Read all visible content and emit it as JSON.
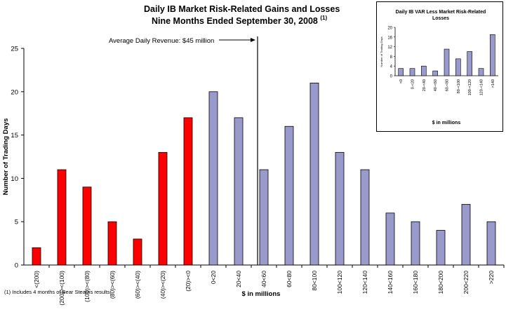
{
  "chart_data": [
    {
      "type": "bar",
      "title": "Daily IB Market Risk-Related Gains and Losses",
      "subtitle": "Nine Months Ended September 30, 2008",
      "subtitle_note": "(1)",
      "xlabel": "$ in millions",
      "ylabel": "Number of Trading Days",
      "ylim": [
        0,
        25
      ],
      "yticks": [
        "0",
        "5",
        "10",
        "15",
        "20",
        "25"
      ],
      "categories": [
        "<(200)",
        "(200)><(100)",
        "(100)><(80)",
        "(80)><(60)",
        "(60)><(40)",
        "(40)><(20)",
        "(20)><0",
        "0<20",
        "20<40",
        "40<60",
        "60<80",
        "80<100",
        "100<120",
        "120<140",
        "140<160",
        "160<180",
        "180<200",
        "200<220",
        ">220"
      ],
      "values": [
        2,
        11,
        9,
        5,
        3,
        13,
        17,
        20,
        17,
        11,
        16,
        21,
        13,
        11,
        6,
        5,
        4,
        7,
        5
      ],
      "colors": [
        "#ff0000",
        "#ff0000",
        "#ff0000",
        "#ff0000",
        "#ff0000",
        "#ff0000",
        "#ff0000",
        "#9999cc",
        "#9999cc",
        "#9999cc",
        "#9999cc",
        "#9999cc",
        "#9999cc",
        "#9999cc",
        "#9999cc",
        "#9999cc",
        "#9999cc",
        "#9999cc",
        "#9999cc"
      ],
      "annotation": "Average Daily Revenue: $45 million",
      "annotation_x": 45,
      "grid": false
    },
    {
      "type": "bar",
      "title": "Daily IB VAR Less Market Risk-Related Losses",
      "xlabel": "$ in millions",
      "ylabel": "Number of Trading Days",
      "ylim": [
        0,
        20
      ],
      "yticks": [
        "0",
        "4",
        "8",
        "12",
        "16",
        "20"
      ],
      "categories": [
        "<0",
        "0-<20",
        "20-<40",
        "40-<60",
        "60-<80",
        "80-<100",
        "100-<120",
        "120-<140",
        ">140"
      ],
      "values": [
        3,
        3,
        4,
        2,
        11,
        7,
        10,
        3,
        17
      ],
      "color": "#9999cc",
      "grid": false
    }
  ],
  "footnote": "(1) Includes 4 months of Bear Stearns results."
}
